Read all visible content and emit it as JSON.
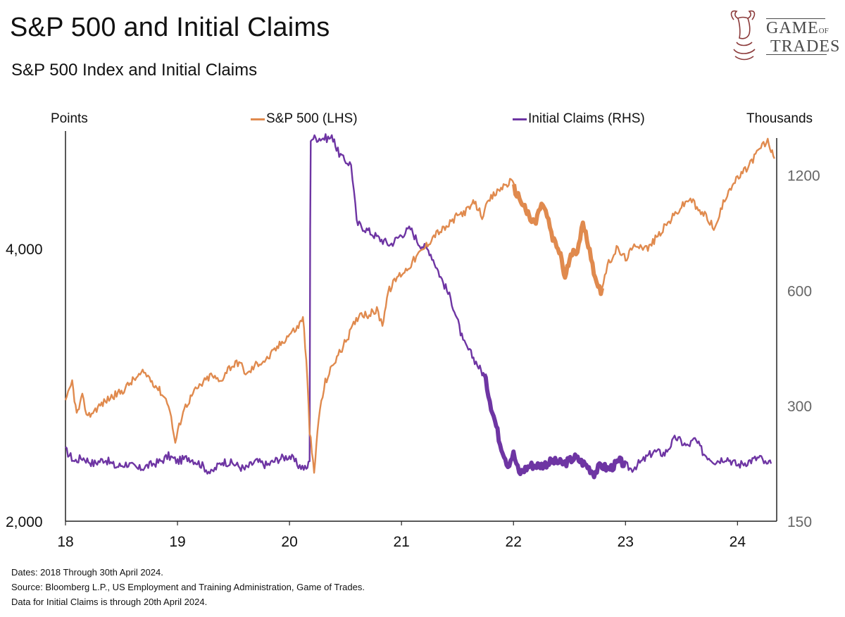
{
  "header": {
    "title": "S&P 500 and Initial Claims",
    "subtitle": "S&P 500 Index and Initial Claims"
  },
  "logo": {
    "line1": "GAME",
    "of": "OF",
    "line2": "TRADES"
  },
  "colors": {
    "sp500": "#E08A4E",
    "claims": "#6E35A3",
    "axis": "#222222",
    "right_tick": "#666666"
  },
  "chart_data": {
    "type": "line",
    "left_axis_label": "Points",
    "right_axis_label": "Thousands",
    "x_ticks": [
      "18",
      "19",
      "20",
      "21",
      "22",
      "23",
      "24"
    ],
    "left_ticks": [
      "2,000",
      "4,000"
    ],
    "right_ticks": [
      "150",
      "300",
      "600",
      "1200"
    ],
    "left_scale": "log",
    "left_range": [
      2000,
      5300
    ],
    "right_scale": "log",
    "right_range": [
      150,
      1500
    ],
    "x_range": [
      2018.0,
      2024.35
    ],
    "legend_placement": "top-center",
    "series": [
      {
        "name": "S&P 500 (LHS)",
        "axis": "left",
        "values": [
          [
            2018.0,
            2700
          ],
          [
            2018.06,
            2850
          ],
          [
            2018.1,
            2620
          ],
          [
            2018.15,
            2740
          ],
          [
            2018.2,
            2610
          ],
          [
            2018.3,
            2680
          ],
          [
            2018.4,
            2740
          ],
          [
            2018.5,
            2780
          ],
          [
            2018.6,
            2860
          ],
          [
            2018.7,
            2920
          ],
          [
            2018.75,
            2880
          ],
          [
            2018.85,
            2780
          ],
          [
            2018.92,
            2700
          ],
          [
            2018.98,
            2440
          ],
          [
            2019.05,
            2650
          ],
          [
            2019.15,
            2780
          ],
          [
            2019.3,
            2900
          ],
          [
            2019.38,
            2850
          ],
          [
            2019.45,
            2950
          ],
          [
            2019.55,
            3000
          ],
          [
            2019.62,
            2900
          ],
          [
            2019.7,
            2980
          ],
          [
            2019.8,
            3020
          ],
          [
            2019.9,
            3120
          ],
          [
            2020.0,
            3220
          ],
          [
            2020.08,
            3280
          ],
          [
            2020.12,
            3370
          ],
          [
            2020.15,
            3000
          ],
          [
            2020.18,
            2520
          ],
          [
            2020.22,
            2250
          ],
          [
            2020.26,
            2600
          ],
          [
            2020.32,
            2850
          ],
          [
            2020.4,
            3000
          ],
          [
            2020.48,
            3120
          ],
          [
            2020.55,
            3250
          ],
          [
            2020.63,
            3400
          ],
          [
            2020.7,
            3380
          ],
          [
            2020.78,
            3420
          ],
          [
            2020.83,
            3300
          ],
          [
            2020.88,
            3580
          ],
          [
            2020.96,
            3720
          ],
          [
            2021.05,
            3800
          ],
          [
            2021.12,
            3900
          ],
          [
            2021.2,
            4000
          ],
          [
            2021.3,
            4150
          ],
          [
            2021.4,
            4220
          ],
          [
            2021.5,
            4350
          ],
          [
            2021.6,
            4420
          ],
          [
            2021.65,
            4500
          ],
          [
            2021.72,
            4350
          ],
          [
            2021.8,
            4550
          ],
          [
            2021.9,
            4680
          ],
          [
            2021.98,
            4750
          ],
          [
            2022.03,
            4600
          ],
          [
            2022.1,
            4450
          ],
          [
            2022.15,
            4300
          ],
          [
            2022.2,
            4280
          ],
          [
            2022.25,
            4500
          ],
          [
            2022.3,
            4350
          ],
          [
            2022.35,
            4100
          ],
          [
            2022.42,
            3950
          ],
          [
            2022.46,
            3700
          ],
          [
            2022.5,
            3900
          ],
          [
            2022.57,
            4000
          ],
          [
            2022.62,
            4250
          ],
          [
            2022.68,
            4000
          ],
          [
            2022.73,
            3700
          ],
          [
            2022.78,
            3600
          ],
          [
            2022.85,
            3850
          ],
          [
            2022.92,
            4000
          ],
          [
            2023.0,
            3900
          ],
          [
            2023.1,
            4050
          ],
          [
            2023.2,
            4000
          ],
          [
            2023.3,
            4150
          ],
          [
            2023.4,
            4300
          ],
          [
            2023.5,
            4450
          ],
          [
            2023.58,
            4550
          ],
          [
            2023.65,
            4400
          ],
          [
            2023.72,
            4350
          ],
          [
            2023.8,
            4200
          ],
          [
            2023.85,
            4400
          ],
          [
            2023.92,
            4650
          ],
          [
            2024.0,
            4780
          ],
          [
            2024.08,
            4900
          ],
          [
            2024.15,
            5050
          ],
          [
            2024.22,
            5200
          ],
          [
            2024.27,
            5250
          ],
          [
            2024.3,
            5150
          ],
          [
            2024.33,
            5030
          ]
        ]
      },
      {
        "name": "Initial Claims (RHS)",
        "axis": "right",
        "values": [
          [
            2018.0,
            230
          ],
          [
            2018.08,
            215
          ],
          [
            2018.15,
            220
          ],
          [
            2018.25,
            212
          ],
          [
            2018.35,
            218
          ],
          [
            2018.45,
            208
          ],
          [
            2018.55,
            212
          ],
          [
            2018.65,
            205
          ],
          [
            2018.75,
            210
          ],
          [
            2018.85,
            215
          ],
          [
            2018.92,
            222
          ],
          [
            2019.0,
            215
          ],
          [
            2019.1,
            220
          ],
          [
            2019.2,
            212
          ],
          [
            2019.3,
            200
          ],
          [
            2019.4,
            215
          ],
          [
            2019.5,
            212
          ],
          [
            2019.6,
            205
          ],
          [
            2019.7,
            215
          ],
          [
            2019.8,
            210
          ],
          [
            2019.9,
            218
          ],
          [
            2020.0,
            222
          ],
          [
            2020.08,
            210
          ],
          [
            2020.15,
            205
          ],
          [
            2020.18,
            215
          ],
          [
            2020.19,
            1500
          ],
          [
            2020.3,
            1500
          ],
          [
            2020.4,
            1500
          ],
          [
            2020.42,
            1400
          ],
          [
            2020.48,
            1320
          ],
          [
            2020.55,
            1280
          ],
          [
            2020.6,
            900
          ],
          [
            2020.7,
            860
          ],
          [
            2020.8,
            820
          ],
          [
            2020.9,
            790
          ],
          [
            2021.0,
            840
          ],
          [
            2021.08,
            870
          ],
          [
            2021.15,
            800
          ],
          [
            2021.25,
            760
          ],
          [
            2021.35,
            650
          ],
          [
            2021.45,
            560
          ],
          [
            2021.55,
            440
          ],
          [
            2021.62,
            410
          ],
          [
            2021.7,
            375
          ],
          [
            2021.74,
            360
          ],
          [
            2021.8,
            300
          ],
          [
            2021.88,
            240
          ],
          [
            2021.95,
            210
          ],
          [
            2022.0,
            225
          ],
          [
            2022.05,
            200
          ],
          [
            2022.15,
            210
          ],
          [
            2022.25,
            210
          ],
          [
            2022.35,
            215
          ],
          [
            2022.45,
            212
          ],
          [
            2022.55,
            220
          ],
          [
            2022.65,
            210
          ],
          [
            2022.72,
            200
          ],
          [
            2022.78,
            210
          ],
          [
            2022.85,
            205
          ],
          [
            2022.95,
            215
          ],
          [
            2023.05,
            205
          ],
          [
            2023.15,
            215
          ],
          [
            2023.25,
            228
          ],
          [
            2023.35,
            225
          ],
          [
            2023.45,
            248
          ],
          [
            2023.55,
            235
          ],
          [
            2023.62,
            245
          ],
          [
            2023.7,
            225
          ],
          [
            2023.8,
            215
          ],
          [
            2023.9,
            220
          ],
          [
            2024.0,
            210
          ],
          [
            2024.1,
            215
          ],
          [
            2024.2,
            220
          ],
          [
            2024.26,
            210
          ],
          [
            2024.3,
            212
          ]
        ]
      }
    ],
    "thick_segments": {
      "S&P 500 (LHS)": [
        2022.0,
        2022.8
      ],
      "Initial Claims (RHS)": [
        2021.74,
        2023.0
      ]
    }
  },
  "footnotes": [
    "Dates: 2018 Through 30th April 2024.",
    "Source: Bloomberg L.P., US Employment and Training Administration, Game of Trades.",
    "Data for Initial Claims is through 20th April 2024."
  ]
}
